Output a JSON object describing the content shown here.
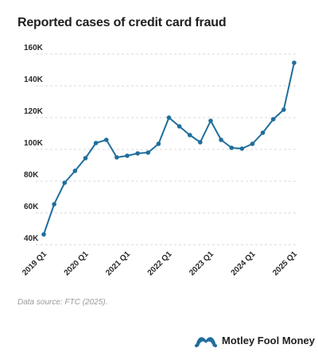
{
  "chart_data": {
    "type": "line",
    "title": "Reported cases of credit card fraud",
    "xlabel": "",
    "ylabel": "",
    "x": [
      "2019 Q1",
      "2019 Q2",
      "2019 Q3",
      "2019 Q4",
      "2020 Q1",
      "2020 Q2",
      "2020 Q3",
      "2020 Q4",
      "2021 Q1",
      "2021 Q2",
      "2021 Q3",
      "2021 Q4",
      "2022 Q1",
      "2022 Q2",
      "2022 Q3",
      "2022 Q4",
      "2023 Q1",
      "2023 Q2",
      "2023 Q3",
      "2023 Q4",
      "2024 Q1",
      "2024 Q2",
      "2024 Q3",
      "2024 Q4",
      "2025 Q1"
    ],
    "series": [
      {
        "values": [
          46500,
          65500,
          79000,
          86500,
          94500,
          104000,
          106000,
          95000,
          96000,
          97500,
          98000,
          103500,
          120000,
          114500,
          109000,
          104500,
          118000,
          106000,
          101000,
          100500,
          103500,
          110500,
          119000,
          125000,
          154500
        ]
      }
    ],
    "x_tick_labels": [
      "2019 Q1",
      "2020 Q1",
      "2021 Q1",
      "2022 Q1",
      "2023 Q1",
      "2024 Q1",
      "2025 Q1"
    ],
    "y_ticks": [
      40000,
      60000,
      80000,
      100000,
      120000,
      140000,
      160000
    ],
    "y_tick_labels": [
      "40K",
      "60K",
      "80K",
      "100K",
      "120K",
      "140K",
      "160K"
    ],
    "ylim": [
      40000,
      160000
    ],
    "grid": "horizontal dashed",
    "line_color": "#1f6e9c"
  },
  "source_note": "Data source: FTC (2025).",
  "brand": {
    "name": "Motley Fool Money",
    "logo_icon": "jester-cap-icon",
    "logo_color": "#1f6e9c"
  }
}
